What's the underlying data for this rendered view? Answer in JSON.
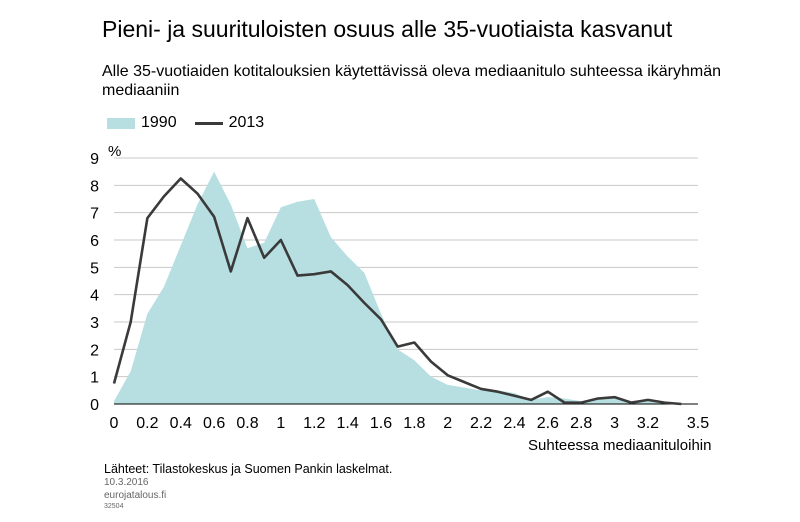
{
  "colors": {
    "area_1990": "#b7dfe1",
    "line_2013": "#3a3a3a",
    "grid": "#c8c8c8"
  },
  "chart_data": {
    "type": "area",
    "title": "Pieni- ja suurituloisten osuus alle 35-vuotiaista kasvanut",
    "subtitle": "Alle 35-vuotiaiden kotitalouksien käytettävissä oleva mediaanitulo suhteessa ikäryhmän mediaaniin",
    "ylabel": "%",
    "xlabel": "Suhteessa mediaanituloihin",
    "xlim": [
      0,
      3.5
    ],
    "ylim": [
      0,
      9
    ],
    "x_ticks": [
      "0",
      "0.2",
      "0.4",
      "0.6",
      "0.8",
      "1",
      "1.2",
      "1.4",
      "1.6",
      "1.8",
      "2",
      "2.2",
      "2.4",
      "2.6",
      "2.8",
      "3",
      "3.2",
      "3.5"
    ],
    "y_ticks": [
      "0",
      "1",
      "2",
      "3",
      "4",
      "5",
      "6",
      "7",
      "8",
      "9"
    ],
    "grid": "horizontal",
    "legend_position": "top-left",
    "x": [
      0,
      0.1,
      0.2,
      0.3,
      0.4,
      0.5,
      0.6,
      0.7,
      0.8,
      0.9,
      1.0,
      1.1,
      1.2,
      1.3,
      1.4,
      1.5,
      1.6,
      1.7,
      1.8,
      1.9,
      2.0,
      2.1,
      2.2,
      2.3,
      2.4,
      2.5,
      2.6,
      2.7,
      2.8,
      2.9,
      3.0,
      3.1,
      3.2,
      3.3,
      3.4
    ],
    "series": [
      {
        "name": "1990",
        "type": "area",
        "values": [
          0.1,
          1.2,
          3.3,
          4.3,
          5.8,
          7.3,
          8.5,
          7.3,
          5.7,
          5.9,
          7.2,
          7.4,
          7.5,
          6.1,
          5.4,
          4.8,
          3.3,
          2.0,
          1.6,
          1.0,
          0.7,
          0.6,
          0.5,
          0.5,
          0.4,
          0.15,
          0.25,
          0.2,
          0.1,
          0.15,
          0.2,
          0.1,
          0.1,
          0.05,
          0.0
        ]
      },
      {
        "name": "2013",
        "type": "line",
        "values": [
          0.75,
          3.0,
          6.8,
          7.6,
          8.25,
          7.7,
          6.85,
          4.85,
          6.8,
          5.35,
          6.0,
          4.7,
          4.75,
          4.85,
          4.35,
          3.7,
          3.1,
          2.1,
          2.25,
          1.55,
          1.05,
          0.8,
          0.55,
          0.45,
          0.3,
          0.15,
          0.45,
          0.05,
          0.05,
          0.2,
          0.25,
          0.05,
          0.15,
          0.05,
          0.0
        ]
      }
    ]
  },
  "footer": {
    "source": "Lähteet: Tilastokeskus ja Suomen Pankin laskelmat.",
    "date": "10.3.2016",
    "site": "eurojatalous.fi",
    "code": "32504"
  }
}
